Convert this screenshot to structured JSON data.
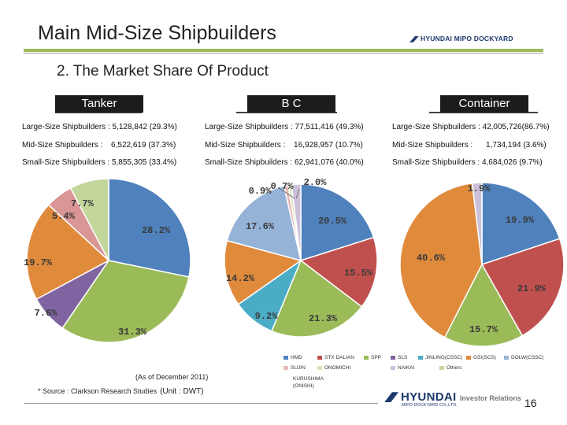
{
  "header": {
    "title": "Main Mid-Size Shipbuilders",
    "logo": "HYUNDAI MIPO DOCKYARD",
    "subtitle": "2. The Market Share Of Product"
  },
  "columns": [
    {
      "tab": "Tanker",
      "stats": [
        {
          "label": "Large-Size Shipbuilders :",
          "value": "5,128,842 (29.3%)"
        },
        {
          "label": "Mid-Size Shipbuilders :",
          "value": "6,522,619 (37.3%)"
        },
        {
          "label": "Small-Size Shipbuilders :",
          "value": "5,855,305 (33.4%)"
        }
      ]
    },
    {
      "tab": "B C",
      "stats": [
        {
          "label": "Large-Size Shipbuilders :",
          "value": "77,511,416 (49.3%)"
        },
        {
          "label": "Mid-Size Shipbuilders :",
          "value": "16,928,957 (10.7%)"
        },
        {
          "label": "Small-Size Shipbuilders :",
          "value": "62,941,076 (40.0%)"
        }
      ]
    },
    {
      "tab": "Container",
      "stats": [
        {
          "label": "Large-Size Shipbuilders :",
          "value": "42,005,726(86.7%)"
        },
        {
          "label": "Mid-Size Shipbuilders :",
          "value": "1,734,194 (3.6%)"
        },
        {
          "label": "Small-Size Shipbuilders :",
          "value": "4,684,026 (9.7%)"
        }
      ]
    }
  ],
  "chart_data": [
    {
      "type": "pie",
      "title": "Tanker",
      "slices": [
        {
          "name": "HMD",
          "value": 28.2,
          "label": "28.2%",
          "color": "#4f81bd"
        },
        {
          "name": "SPP",
          "value": 31.3,
          "label": "31.3%",
          "color": "#9bbb59"
        },
        {
          "name": "SLS",
          "value": 7.6,
          "label": "7.6%",
          "color": "#8064a2"
        },
        {
          "name": "GSI(SCS)",
          "value": 19.7,
          "label": "19.7%",
          "color": "#e08a3c"
        },
        {
          "name": "NAIKAI",
          "value": 5.4,
          "label": "5.4%",
          "color": "#d99694"
        },
        {
          "name": "Others",
          "value": 7.7,
          "label": "7.7%",
          "color": "#c3d69b"
        }
      ]
    },
    {
      "type": "pie",
      "title": "B C",
      "slices": [
        {
          "name": "HMD",
          "value": 20.5,
          "label": "20.5%",
          "color": "#4f81bd"
        },
        {
          "name": "STX DALIAN",
          "value": 15.5,
          "label": "15.5%",
          "color": "#c0504d"
        },
        {
          "name": "SPP",
          "value": 21.3,
          "label": "21.3%",
          "color": "#9bbb59"
        },
        {
          "name": "JINLING(CSSC)",
          "value": 9.2,
          "label": "9.2%",
          "color": "#4bacc6"
        },
        {
          "name": "GSI(SCS)",
          "value": 14.2,
          "label": "14.2%",
          "color": "#e08a3c"
        },
        {
          "name": "DOLW(CSSC)",
          "value": 17.6,
          "label": "17.6%",
          "color": "#95b3d7"
        },
        {
          "name": "SUJIN",
          "value": 0.9,
          "label": "0.9%",
          "color": "#e6b9b8"
        },
        {
          "name": "ONOMICHI",
          "value": 0.7,
          "label": "0.7%",
          "color": "#d7e4bd"
        },
        {
          "name": "NAIKAI",
          "value": 2.0,
          "label": "2.0%",
          "color": "#ccc1da"
        }
      ]
    },
    {
      "type": "pie",
      "title": "Container",
      "slices": [
        {
          "name": "HMD",
          "value": 19.9,
          "label": "19.9%",
          "color": "#4f81bd"
        },
        {
          "name": "STX DALIAN",
          "value": 21.9,
          "label": "21.9%",
          "color": "#c0504d"
        },
        {
          "name": "SPP",
          "value": 15.7,
          "label": "15.7%",
          "color": "#9bbb59"
        },
        {
          "name": "GSI(SCS)",
          "value": 40.6,
          "label": "40.6%",
          "color": "#e08a3c"
        },
        {
          "name": "NAIKAI",
          "value": 1.9,
          "label": "1.9%",
          "color": "#ccc1da"
        }
      ]
    }
  ],
  "legend": {
    "items": [
      {
        "name": "HMD",
        "color": "#4f81bd"
      },
      {
        "name": "STX DALIAN",
        "color": "#c0504d"
      },
      {
        "name": "SPP",
        "color": "#9bbb59"
      },
      {
        "name": "SLS",
        "color": "#8064a2"
      },
      {
        "name": "JINLING(CSSC)",
        "color": "#4bacc6"
      },
      {
        "name": "GSI(SCS)",
        "color": "#e08a3c"
      },
      {
        "name": "DOLW(CSSC)",
        "color": "#95b3d7"
      },
      {
        "name": "SUJIN",
        "color": "#e6b9b8"
      },
      {
        "name": "ONOMICHI",
        "color": "#d7e4bd"
      },
      {
        "name": "NAIKAI",
        "color": "#ccc1da"
      },
      {
        "name": "Others",
        "color": "#c3d69b"
      },
      {
        "name": "KURUSHIMA (ONISHI)",
        "color": "#ffffff"
      }
    ]
  },
  "footer": {
    "as_of": "(As of December 2011)",
    "source": "* Source : Clarkson Research Studies",
    "unit": "(Unit : DWT)",
    "brand": "HYUNDAI",
    "brand_sub": "MIPO DOCKYARD CO.,LTD.",
    "ir": "Investor Relations",
    "page": "16"
  }
}
